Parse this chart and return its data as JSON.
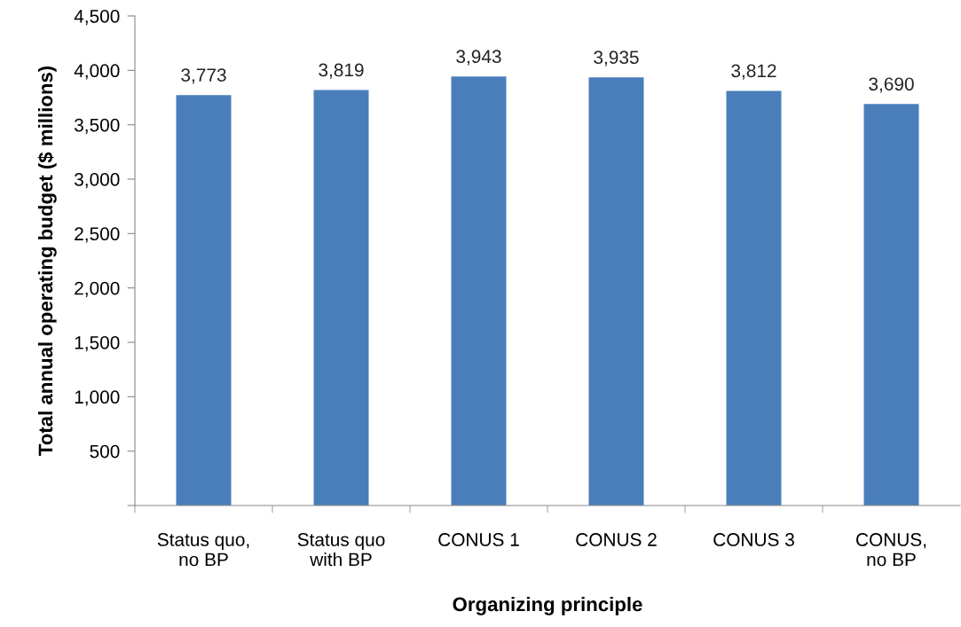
{
  "chart_data": {
    "type": "bar",
    "xlabel": "Organizing principle",
    "ylabel": "Total annual operating budget ($ millions)",
    "categories": [
      "Status quo,\nno BP",
      "Status quo\nwith BP",
      "CONUS 1",
      "CONUS 2",
      "CONUS 3",
      "CONUS,\nno BP"
    ],
    "values": [
      3773,
      3819,
      3943,
      3935,
      3812,
      3690
    ],
    "color": "#4a7ebb",
    "value_labels": [
      "3,773",
      "3,819",
      "3,943",
      "3,935",
      "3,812",
      "3,690"
    ],
    "ylim": [
      0,
      4500
    ],
    "yticks": [
      {
        "value": 0,
        "label": null
      },
      {
        "value": 500,
        "label": "500"
      },
      {
        "value": 1000,
        "label": "1,000"
      },
      {
        "value": 1500,
        "label": "1,500"
      },
      {
        "value": 2000,
        "label": "2,000"
      },
      {
        "value": 2500,
        "label": "2,500"
      },
      {
        "value": 3000,
        "label": "3,000"
      },
      {
        "value": 3500,
        "label": "3,500"
      },
      {
        "value": 4000,
        "label": "4,000"
      },
      {
        "value": 4500,
        "label": "4,500"
      }
    ],
    "grid": false,
    "legend": false
  }
}
